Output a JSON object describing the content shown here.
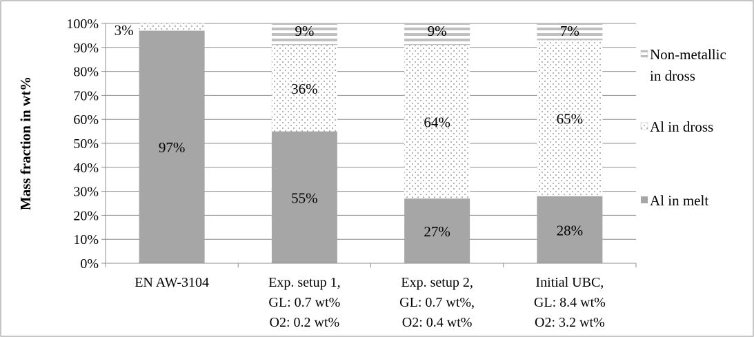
{
  "chart_data": {
    "type": "bar",
    "stacked": true,
    "percent_stacked": true,
    "ylabel": "Mass fraction in wt%",
    "xlabel": "",
    "title": "",
    "ylim": [
      0,
      100
    ],
    "yticks": [
      "0%",
      "10%",
      "20%",
      "30%",
      "40%",
      "50%",
      "60%",
      "70%",
      "80%",
      "90%",
      "100%"
    ],
    "grid": true,
    "legend_position": "right",
    "categories": [
      [
        "EN AW-3104"
      ],
      [
        "Exp. setup 1,",
        "GL: 0.7 wt%",
        "O2: 0.2   wt%"
      ],
      [
        "Exp. setup 2,",
        "GL: 0.7 wt%,",
        "O2: 0.4 wt%"
      ],
      [
        "Initial UBC,",
        "GL: 8.4 wt%",
        "O2: 3.2 wt%"
      ]
    ],
    "series": [
      {
        "name": "Al in melt",
        "values": [
          97,
          55,
          27,
          28
        ],
        "labels": [
          "97%",
          "55%",
          "27%",
          "28%"
        ],
        "pattern": "solid",
        "color": "#a6a6a6"
      },
      {
        "name": "Al in dross",
        "values": [
          3,
          36,
          64,
          65
        ],
        "labels": [
          "3%",
          "36%",
          "64%",
          "65%"
        ],
        "pattern": "dots",
        "color": "#7f7f7f"
      },
      {
        "name": [
          "Non-metallic",
          "in dross"
        ],
        "values": [
          0,
          9,
          9,
          7
        ],
        "labels": [
          "",
          "9%",
          "9%",
          "7%"
        ],
        "pattern": "horizontal-stripes",
        "color": "#bfbfbf"
      }
    ]
  }
}
